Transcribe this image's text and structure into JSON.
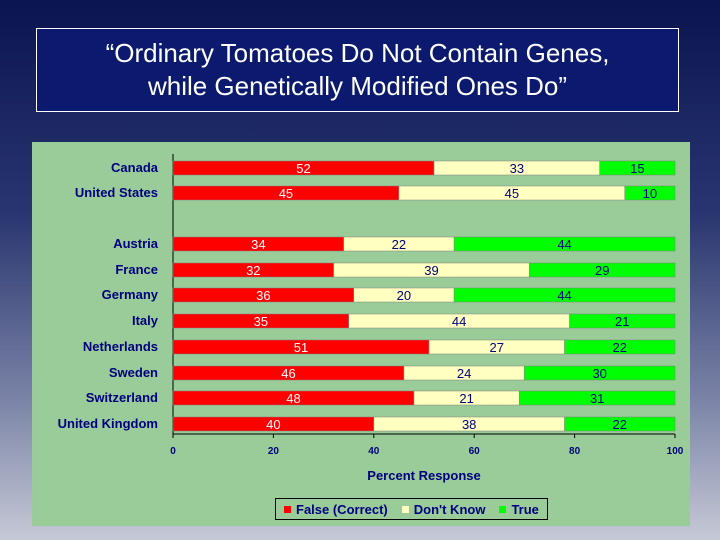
{
  "title": {
    "line1": "“Ordinary Tomatoes Do Not Contain Genes,",
    "line2": "while Genetically Modified Ones Do”"
  },
  "chart_data": {
    "type": "bar",
    "orientation": "horizontal",
    "stacked": true,
    "categories": [
      "Canada",
      "United States",
      "Austria",
      "France",
      "Germany",
      "Italy",
      "Netherlands",
      "Sweden",
      "Switzerland",
      "United Kingdom"
    ],
    "series": [
      {
        "name": "False (Correct)",
        "color": "#ff0000",
        "values": [
          52,
          45,
          34,
          32,
          36,
          35,
          51,
          46,
          48,
          40
        ]
      },
      {
        "name": "Don't Know",
        "color": "#ffffc0",
        "values": [
          33,
          45,
          22,
          39,
          20,
          44,
          27,
          24,
          21,
          38
        ]
      },
      {
        "name": "True",
        "color": "#00ff00",
        "values": [
          15,
          10,
          44,
          29,
          44,
          21,
          22,
          30,
          31,
          22
        ]
      }
    ],
    "xlabel": "Percent Response",
    "xlim": [
      0,
      100
    ],
    "xticks": [
      "0",
      "20",
      "40",
      "60",
      "80",
      "100"
    ],
    "legend_position": "bottom"
  }
}
